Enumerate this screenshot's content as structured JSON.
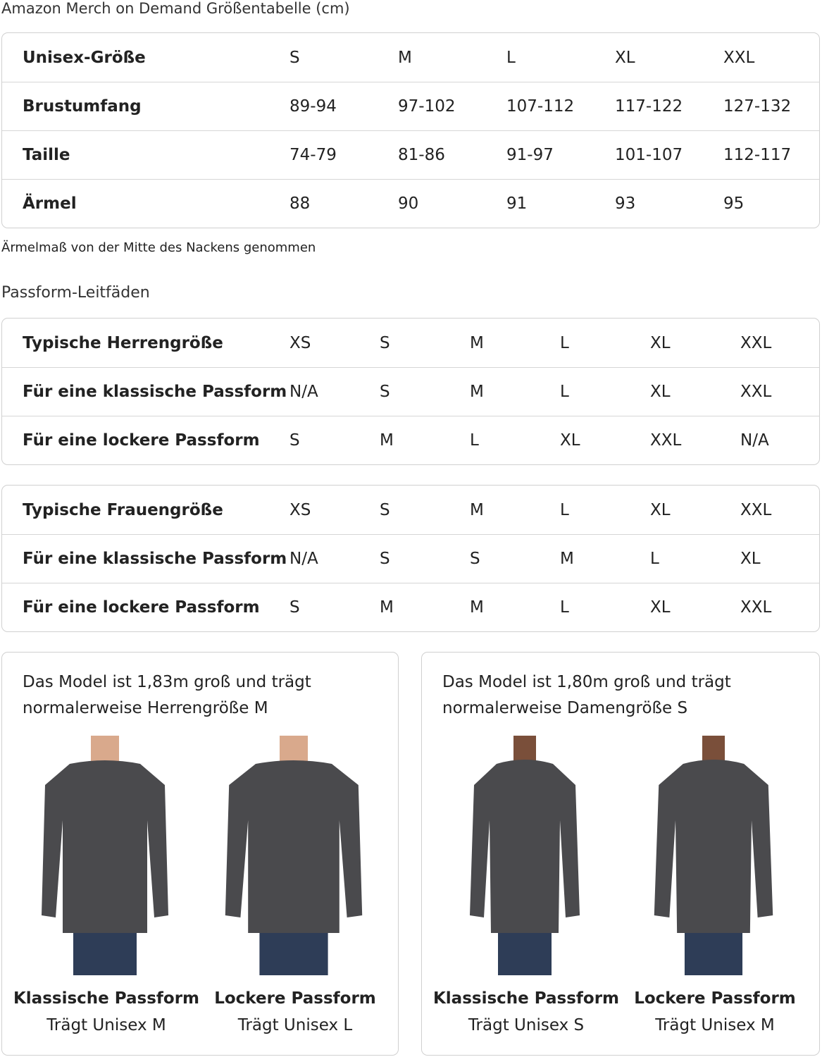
{
  "title": "Amazon Merch on Demand Größentabelle (cm)",
  "unisex": [
    [
      "Unisex-Größe",
      "S",
      "M",
      "L",
      "XL",
      "XXL"
    ],
    [
      "Brustumfang",
      "89-94",
      "97-102",
      "107-112",
      "117-122",
      "127-132"
    ],
    [
      "Taille",
      "74-79",
      "81-86",
      "91-97",
      "101-107",
      "112-117"
    ],
    [
      "Ärmel",
      "88",
      "90",
      "91",
      "93",
      "95"
    ]
  ],
  "note": "Ärmelmaß von der Mitte des Nackens genommen",
  "fit_heading": "Passform-Leitfäden",
  "men": [
    [
      "Typische Herrengröße",
      "XS",
      "S",
      "M",
      "L",
      "XL",
      "XXL"
    ],
    [
      "Für eine klassische Passform",
      "N/A",
      "S",
      "M",
      "L",
      "XL",
      "XXL"
    ],
    [
      "Für eine lockere Passform",
      "S",
      "M",
      "L",
      "XL",
      "XXL",
      "N/A"
    ]
  ],
  "women": [
    [
      "Typische Frauengröße",
      "XS",
      "S",
      "M",
      "L",
      "XL",
      "XXL"
    ],
    [
      "Für eine klassische Passform",
      "N/A",
      "S",
      "S",
      "M",
      "L",
      "XL"
    ],
    [
      "Für eine lockere Passform",
      "S",
      "M",
      "M",
      "L",
      "XL",
      "XXL"
    ]
  ],
  "panels": [
    {
      "text1": "Das Model ist 1,83m groß und trägt",
      "text2": "normalerweise Herrengröße M",
      "items": [
        {
          "title": "Klassische Passform",
          "sub": "Trägt Unisex M"
        },
        {
          "title": "Lockere Passform",
          "sub": "Trägt Unisex L"
        }
      ]
    },
    {
      "text1": "Das Model ist 1,80m groß und trägt",
      "text2": "normalerweise Damengröße S",
      "items": [
        {
          "title": "Klassische Passform",
          "sub": "Trägt Unisex S"
        },
        {
          "title": "Lockere Passform",
          "sub": "Trägt Unisex M"
        }
      ]
    }
  ],
  "colors": {
    "border": "#d0d0d0",
    "shirt": "#4a4a4d",
    "jeans": "#2e3d57"
  }
}
